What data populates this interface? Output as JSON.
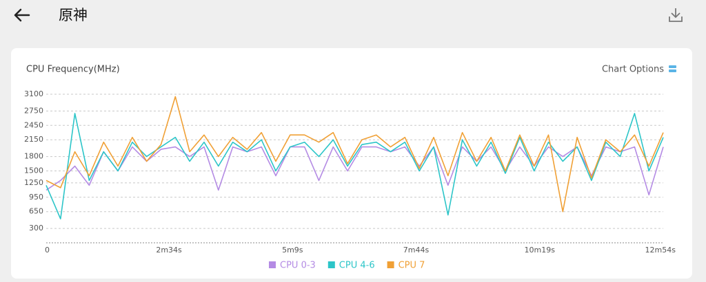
{
  "header": {
    "title": "原神"
  },
  "chart_options": "Chart Options",
  "chart_data": {
    "type": "line",
    "title": "CPU Frequency(MHz)",
    "x": [
      0,
      18,
      36,
      54,
      72,
      90,
      108,
      126,
      144,
      162,
      180,
      198,
      216,
      234,
      252,
      270,
      288,
      306,
      324,
      342,
      360,
      378,
      396,
      414,
      432,
      450,
      468,
      486,
      504,
      522,
      540,
      558,
      576,
      594,
      612,
      630,
      648,
      666,
      684,
      702,
      720,
      738,
      756,
      774
    ],
    "xlim": [
      0,
      774
    ],
    "xticks": [
      {
        "value": 0,
        "label": "0"
      },
      {
        "value": 154,
        "label": "2m34s"
      },
      {
        "value": 309,
        "label": "5m9s"
      },
      {
        "value": 464,
        "label": "7m44s"
      },
      {
        "value": 619,
        "label": "10m19s"
      },
      {
        "value": 774,
        "label": "12m54s"
      }
    ],
    "ylim": [
      0,
      3100
    ],
    "yticks": [
      300,
      650,
      950,
      1250,
      1500,
      1800,
      2150,
      2450,
      2750,
      3100
    ],
    "grid": true,
    "series": [
      {
        "name": "CPU 0-3",
        "color": "#b48be4",
        "values": [
          1100,
          1300,
          1600,
          1200,
          1900,
          1500,
          2000,
          1700,
          1950,
          2000,
          1800,
          2000,
          1100,
          2000,
          1900,
          2000,
          1400,
          2000,
          2000,
          1300,
          2000,
          1500,
          2000,
          2000,
          1900,
          2000,
          1600,
          2000,
          1200,
          2000,
          1700,
          2000,
          1500,
          2000,
          1600,
          2000,
          1800,
          2000,
          1400,
          2000,
          1900,
          2000,
          1000,
          2000
        ]
      },
      {
        "name": "CPU 4-6",
        "color": "#2cc5c8",
        "values": [
          1200,
          500,
          2700,
          1300,
          1900,
          1500,
          2100,
          1800,
          2000,
          2200,
          1700,
          2100,
          1600,
          2100,
          1900,
          2150,
          1500,
          2000,
          2100,
          1800,
          2150,
          1600,
          2050,
          2100,
          1900,
          2100,
          1500,
          2000,
          580,
          2150,
          1600,
          2100,
          1450,
          2200,
          1500,
          2100,
          1700,
          2000,
          1300,
          2100,
          1800,
          2700,
          1500,
          2200
        ]
      },
      {
        "name": "CPU 7",
        "color": "#f0a035",
        "values": [
          1300,
          1150,
          1900,
          1400,
          2100,
          1600,
          2200,
          1700,
          2050,
          3050,
          1900,
          2250,
          1800,
          2200,
          1950,
          2300,
          1700,
          2250,
          2250,
          2100,
          2300,
          1650,
          2150,
          2250,
          2000,
          2200,
          1550,
          2200,
          1400,
          2300,
          1700,
          2200,
          1500,
          2250,
          1600,
          2250,
          650,
          2200,
          1350,
          2150,
          1900,
          2250,
          1600,
          2300
        ]
      }
    ]
  }
}
